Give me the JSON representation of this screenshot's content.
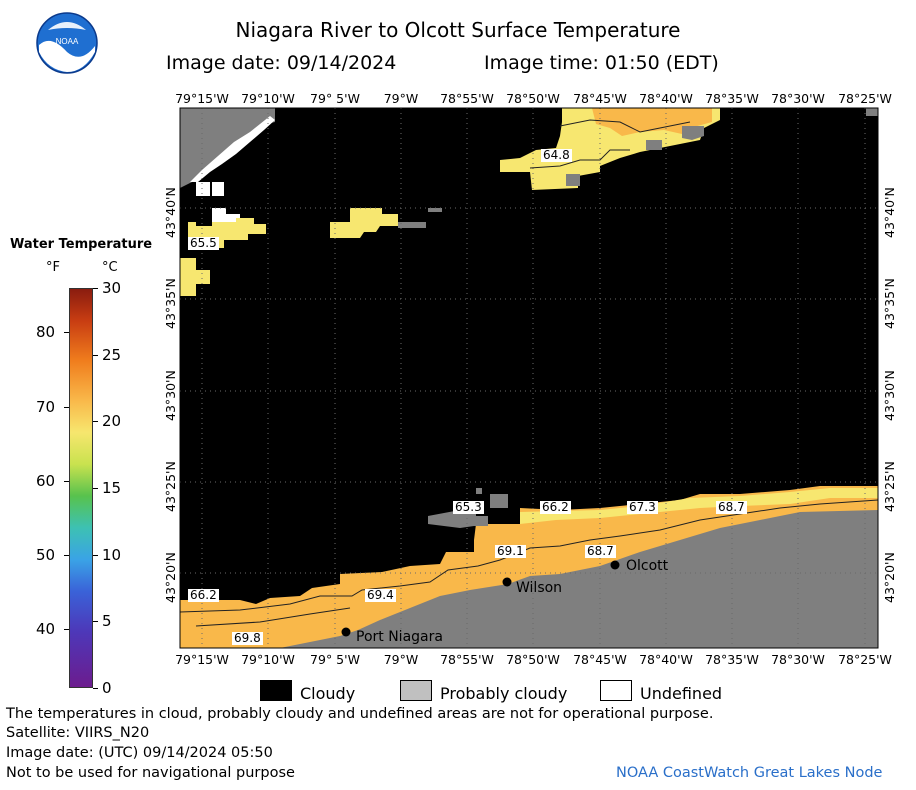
{
  "header": {
    "title": "Niagara River to Olcott Surface Temperature",
    "image_date": "Image date: 09/14/2024",
    "image_time": "Image time: 01:50 (EDT)"
  },
  "logo": {
    "text": "NOAA"
  },
  "colorbar": {
    "title": "Water Temperature",
    "unit_f": "°F",
    "unit_c": "°C",
    "f_ticks": [
      "80",
      "70",
      "60",
      "50",
      "40"
    ],
    "c_ticks": [
      "30",
      "25",
      "20",
      "15",
      "10",
      "5",
      "0"
    ]
  },
  "map": {
    "lon_labels": [
      "79°15'W",
      "79°10'W",
      "79° 5'W",
      "79°W",
      "78°55'W",
      "78°50'W",
      "78°45'W",
      "78°40'W",
      "78°35'W",
      "78°30'W",
      "78°25'W"
    ],
    "lat_labels": [
      "43°40'N",
      "43°35'N",
      "43°30'N",
      "43°25'N",
      "43°20'N"
    ],
    "temperature_labels": [
      "64.8",
      "65.5",
      "65.3",
      "66.2",
      "67.3",
      "68.7",
      "69.1",
      "68.7",
      "66.2",
      "69.4",
      "69.8"
    ],
    "towns": [
      "Olcott",
      "Wilson",
      "Port Niagara"
    ],
    "colors": {
      "cloud": "#000000",
      "land": "#7f7f7f",
      "warm": "#f9b84a",
      "cool": "#f7e770",
      "undefined": "#ffffff"
    }
  },
  "legend": {
    "cloudy": "Cloudy",
    "probably_cloudy": "Probably cloudy",
    "undefined": "Undefined"
  },
  "footer": {
    "disclaimer": "The temperatures in cloud, probably cloudy and undefined areas are not for operational purpose.",
    "satellite": "Satellite: VIIRS_N20",
    "utc_date": "Image date: (UTC) 09/14/2024  05:50",
    "nav": "Not to be used for navigational purpose",
    "credit": "NOAA CoastWatch Great Lakes Node"
  }
}
